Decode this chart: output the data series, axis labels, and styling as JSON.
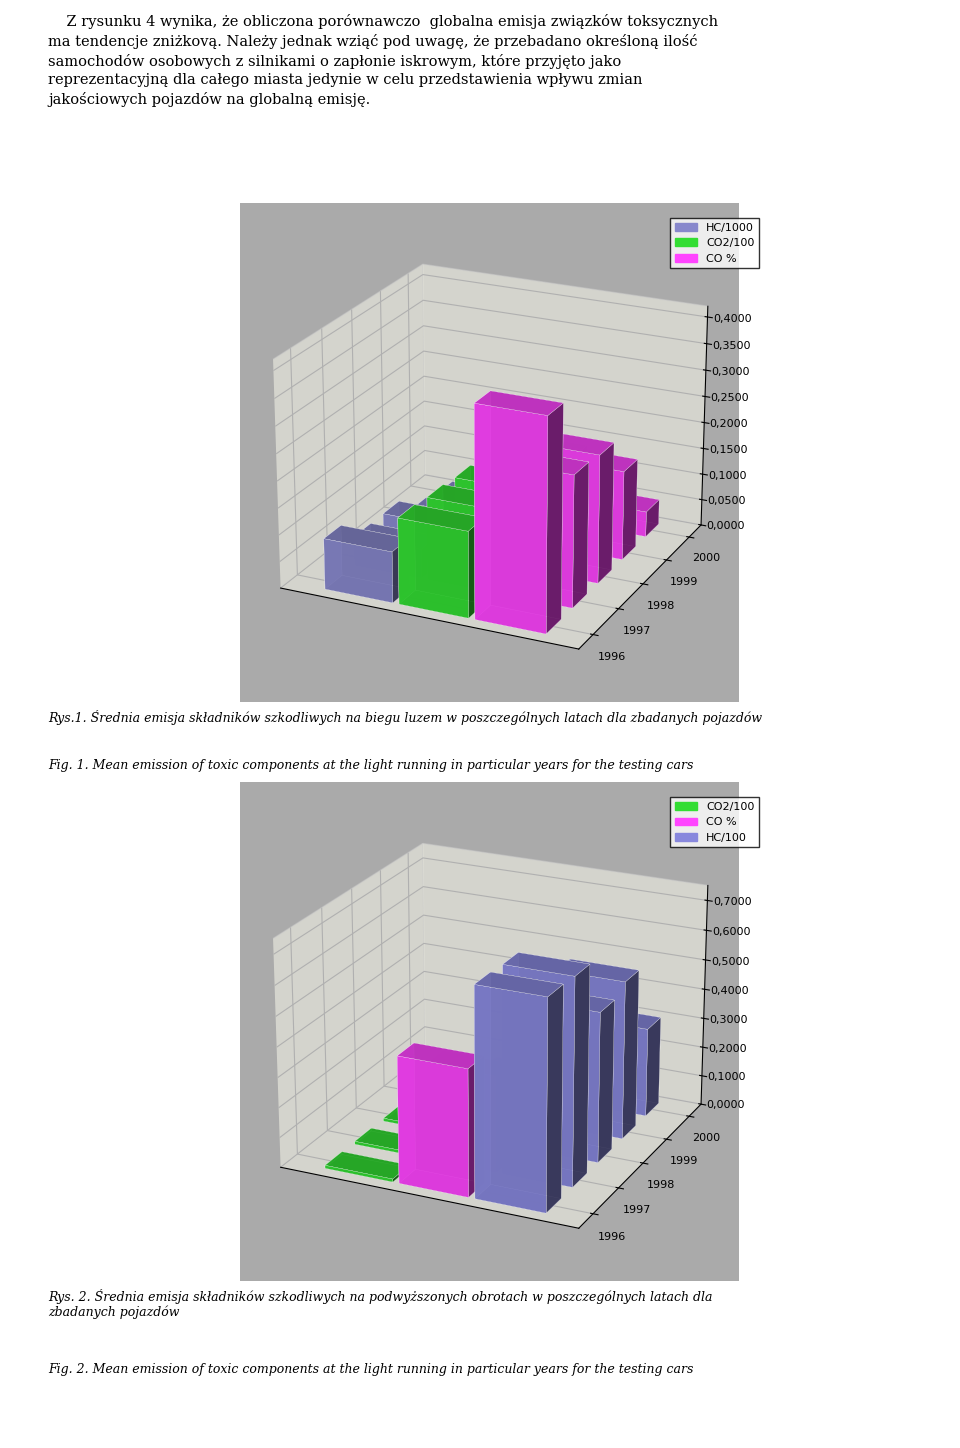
{
  "chart1": {
    "years": [
      "1996",
      "1997",
      "1998",
      "1999",
      "2000"
    ],
    "series_names": [
      "HC/1000",
      "CO2/100",
      "CO %"
    ],
    "series_colors": [
      "#8888CC",
      "#33DD33",
      "#FF44FF"
    ],
    "data": [
      [
        0.095,
        0.16,
        0.39
      ],
      [
        0.055,
        0.155,
        0.245
      ],
      [
        0.055,
        0.15,
        0.24
      ],
      [
        0.02,
        0.145,
        0.168
      ],
      [
        0.01,
        0.13,
        0.048
      ]
    ],
    "ylim": [
      0.0,
      0.42
    ],
    "yticks": [
      0.0,
      0.05,
      0.1,
      0.15,
      0.2,
      0.25,
      0.3,
      0.35,
      0.4
    ],
    "ytick_labels": [
      "0,0000",
      "0,0500",
      "0,1000",
      "0,1500",
      "0,2000",
      "0,2500",
      "0,3000",
      "0,3500",
      "0,4000"
    ]
  },
  "chart2": {
    "years": [
      "1996",
      "1997",
      "1998",
      "1999",
      "2000"
    ],
    "series_names": [
      "CO2/100",
      "CO %",
      "HC/100"
    ],
    "series_colors": [
      "#33DD33",
      "#FF44FF",
      "#8888DD"
    ],
    "data": [
      [
        0.01,
        0.42,
        0.69
      ],
      [
        0.01,
        0.32,
        0.685
      ],
      [
        0.01,
        0.2,
        0.5
      ],
      [
        0.01,
        0.15,
        0.53
      ],
      [
        0.01,
        0.05,
        0.3
      ]
    ],
    "ylim": [
      0.0,
      0.75
    ],
    "yticks": [
      0.0,
      0.1,
      0.2,
      0.3,
      0.4,
      0.5,
      0.6,
      0.7
    ],
    "ytick_labels": [
      "0,0000",
      "0,1000",
      "0,2000",
      "0,3000",
      "0,4000",
      "0,5000",
      "0,6000",
      "0,7000"
    ]
  },
  "text_top": "    Z rysunku 4 wynika, że obliczona porównawczo  globalna emisja związków toksycznych\nma tendencje zniżkovą. Należy jednak wziąć pod uwagę, że przebadano określoną ilość\nsamochodów osobowych z silnikami o zapłonie iskrowym, które przyjęto jako\nreprezentacyjną dla całego miasta jedynie w celu przedstawienia wpływu zmian\njakościowych pojazdów na globalną emisję.",
  "caption1_pl": "Rys.1. Średnia emisja składników szkodliwych na biegu luzem w poszczególnych latach dla zbadanych pojazdów",
  "caption1_en": "Fig. 1. Mean emission of toxic components at the light running in particular years for the testing cars",
  "caption2_pl": "Rys. 2. Średnia emisja składników szkodliwych na podwyższonych obrotach w poszczególnych latach dla\nzbadanych pojazdów",
  "caption2_en": "Fig. 2. Mean emission of toxic components at the light running in particular years for the testing cars",
  "wall_color": "#FFFFF0",
  "floor_color": "#AAAAAA",
  "elev1": 22,
  "azim1": -65,
  "elev2": 22,
  "azim2": -65
}
